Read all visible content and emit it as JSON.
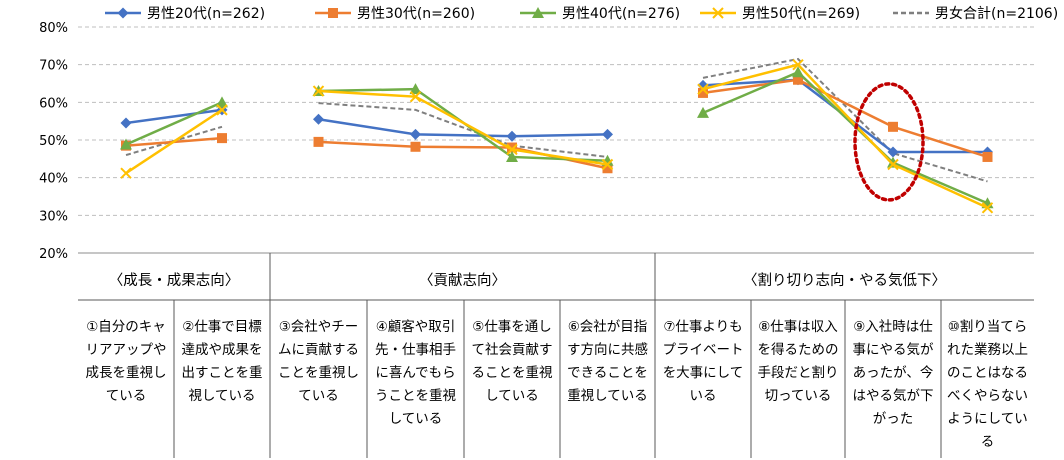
{
  "chart_data": {
    "type": "line",
    "ylim": [
      20,
      80
    ],
    "yticks": [
      "20%",
      "30%",
      "40%",
      "50%",
      "60%",
      "70%",
      "80%"
    ],
    "grid": true,
    "legend_position": "top",
    "groups": [
      {
        "label": "〈成長・成果志向〉",
        "start": 0,
        "end": 1
      },
      {
        "label": "〈貢献志向〉",
        "start": 2,
        "end": 5
      },
      {
        "label": "〈割り切り志向・やる気低下〉",
        "start": 6,
        "end": 9
      }
    ],
    "categories": [
      [
        "①自分のキャ",
        "リアアップや",
        "成長を重視し",
        "ている"
      ],
      [
        "②仕事で目標",
        "達成や成果を",
        "出すことを重",
        "視している"
      ],
      [
        "③会社やチー",
        "ムに貢献する",
        "ことを重視し",
        "ている"
      ],
      [
        "④顧客や取引",
        "先・仕事相手",
        "に喜んでもら",
        "うことを重視",
        "している"
      ],
      [
        "⑤仕事を通し",
        "て社会貢献す",
        "ることを重視",
        "している"
      ],
      [
        "⑥会社が目指",
        "す方向に共感",
        "できることを",
        "重視している"
      ],
      [
        "⑦仕事よりも",
        "プライベート",
        "を大事にして",
        "いる"
      ],
      [
        "⑧仕事は収入",
        "を得るための",
        "手段だと割り",
        "切っている"
      ],
      [
        "⑨入社時は仕",
        "事にやる気が",
        "あったが、今",
        "はやる気が下",
        "がった"
      ],
      [
        "⑩割り当てら",
        "れた業務以上",
        "のことはなる",
        "べくやらない",
        "ようにしてい",
        "る"
      ]
    ],
    "series": [
      {
        "name": "男性20代(n=262)",
        "color": "#4472C4",
        "marker": "diamond",
        "values": [
          54.5,
          58.0,
          55.5,
          51.5,
          51.0,
          51.5,
          64.5,
          66.0,
          46.8,
          46.8
        ]
      },
      {
        "name": "男性30代(n=260)",
        "color": "#ED7D31",
        "marker": "square",
        "values": [
          48.5,
          50.5,
          49.5,
          48.2,
          48.0,
          42.5,
          62.5,
          66.0,
          53.5,
          45.5
        ]
      },
      {
        "name": "男性40代(n=276)",
        "color": "#70AD47",
        "marker": "triangle",
        "values": [
          48.8,
          60.0,
          63.0,
          63.5,
          45.5,
          44.5,
          57.2,
          68.0,
          44.0,
          33.2
        ]
      },
      {
        "name": "男性50代(n=269)",
        "color": "#FFC000",
        "marker": "x",
        "values": [
          41.2,
          58.0,
          63.0,
          61.5,
          47.5,
          43.5,
          63.5,
          70.0,
          43.5,
          32.0
        ]
      },
      {
        "name": "男女合計(n=2106)",
        "color": "#7F7F7F",
        "marker": "none",
        "dashed": true,
        "values": [
          46.0,
          53.5,
          59.8,
          58.0,
          48.5,
          45.5,
          66.5,
          71.5,
          46.5,
          39.0
        ]
      }
    ],
    "highlight": {
      "category_index": 8,
      "color": "#C00000"
    }
  }
}
